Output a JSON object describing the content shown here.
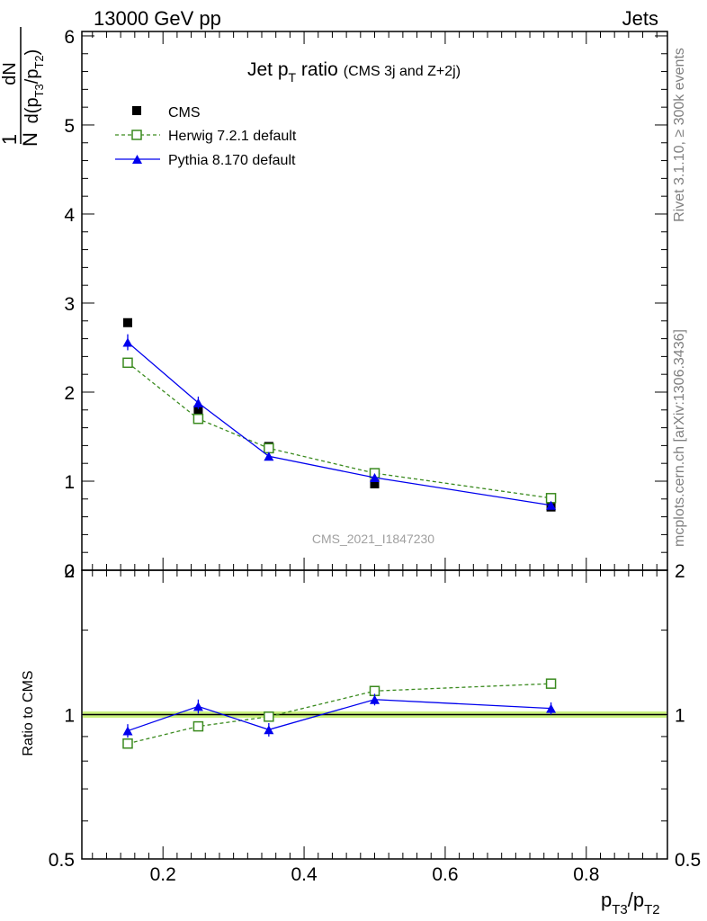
{
  "header": {
    "left": "13000 GeV pp",
    "right": "Jets"
  },
  "side_labels": {
    "rivet": "Rivet 3.1.10, ≥ 300k events",
    "mcplots": "mcplots.cern.ch [arXiv:1306.3436]"
  },
  "chart_data": [
    {
      "type": "scatter",
      "panel": "main",
      "title": {
        "main": "Jet p",
        "main_sub": "T",
        "main_rest": " ratio",
        "suffix": "(CMS 3j and Z+2j)"
      },
      "ylabel": {
        "one": "1",
        "N": "N",
        "dN": "dN",
        "d": "d(p",
        "T3": "T3",
        "slash": "/p",
        "T2": "T2",
        "close": ")"
      },
      "watermark": "CMS_2021_I1847230",
      "xlim": [
        0.085,
        0.915
      ],
      "ylim": [
        0,
        6.05
      ],
      "yticks": [
        0,
        1,
        2,
        3,
        4,
        5,
        6
      ],
      "grid": false,
      "legend_position": "top-left",
      "x": [
        0.15,
        0.25,
        0.35,
        0.5,
        0.75
      ],
      "series": [
        {
          "name": "CMS",
          "style": "square",
          "color": "#000000",
          "values": [
            2.78,
            1.8,
            1.39,
            0.97,
            0.71
          ]
        },
        {
          "name": "Herwig 7.2.1 default",
          "style": "open-square-dashed",
          "color": "#3a8a1e",
          "values": [
            2.33,
            1.7,
            1.37,
            1.09,
            0.81
          ],
          "errors": [
            0.02,
            0.02,
            0.02,
            0.02,
            0.02
          ]
        },
        {
          "name": "Pythia 8.170 default",
          "style": "triangle-line",
          "color": "#0000ee",
          "values": [
            2.56,
            1.88,
            1.28,
            1.04,
            0.73
          ],
          "errors": [
            0.09,
            0.07,
            0.04,
            0.03,
            0.03
          ]
        }
      ]
    },
    {
      "type": "scatter",
      "panel": "ratio",
      "ylabel": "Ratio to CMS",
      "xlabel": {
        "p": "p",
        "T3": "T3",
        "slash": "/p",
        "T2": "T2"
      },
      "xlim": [
        0.085,
        0.915
      ],
      "ylim": [
        0.5,
        2.0
      ],
      "yticks": [
        0.5,
        1,
        2
      ],
      "xticks": [
        0.2,
        0.4,
        0.6,
        0.8
      ],
      "reference_band": [
        0.985,
        1.015
      ],
      "x": [
        0.15,
        0.25,
        0.35,
        0.5,
        0.75
      ],
      "series": [
        {
          "name": "Herwig 7.2.1 default",
          "style": "open-square-dashed",
          "color": "#3a8a1e",
          "values": [
            0.87,
            0.945,
            0.99,
            1.12,
            1.16
          ]
        },
        {
          "name": "Pythia 8.170 default",
          "style": "triangle-line",
          "color": "#0000ee",
          "values": [
            0.925,
            1.04,
            0.93,
            1.075,
            1.03
          ],
          "errors": [
            0.03,
            0.035,
            0.03,
            0.03,
            0.03
          ]
        }
      ]
    }
  ],
  "colors": {
    "band": "#c8f07a",
    "reference": "#000000"
  }
}
